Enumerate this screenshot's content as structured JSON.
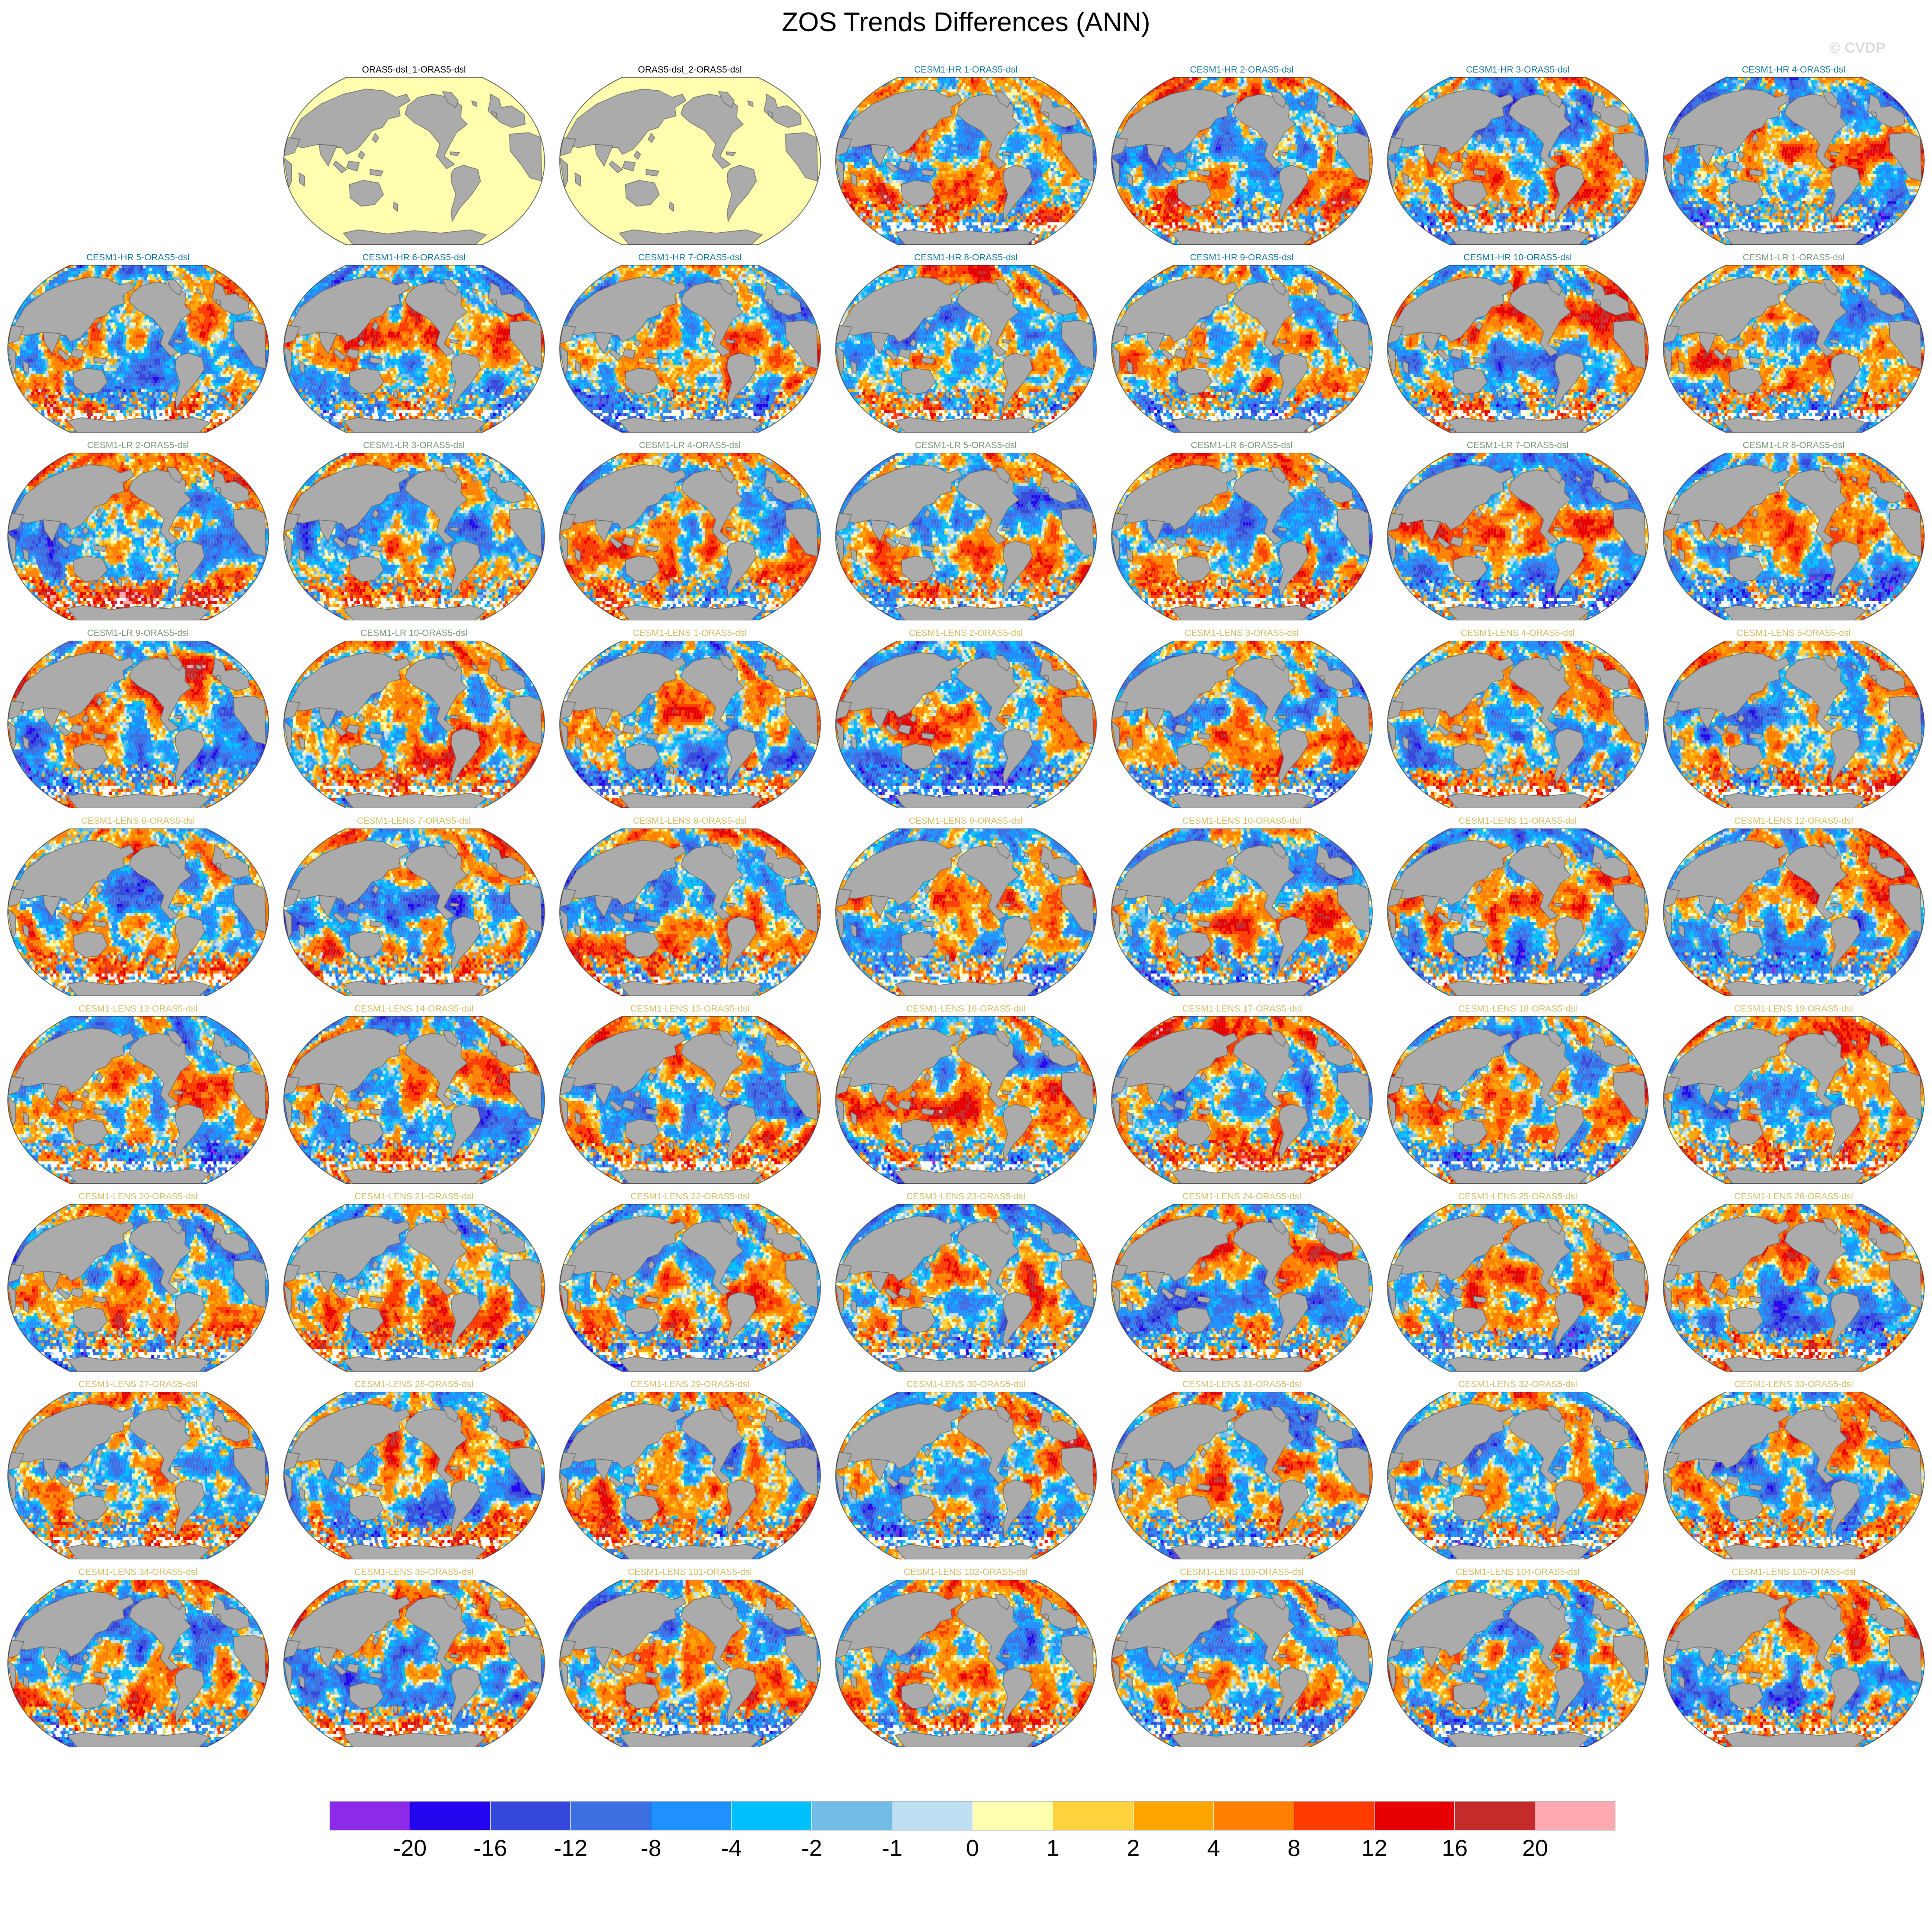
{
  "header": {
    "title": "ZOS Trends Differences (ANN)",
    "watermark": "© CVDP"
  },
  "panel_title_colors": {
    "obs": "#000000",
    "hr": "#17789E",
    "lr": "#7E9B7E",
    "lens": "#D3BF6B"
  },
  "map": {
    "land_color": "#ABABAB",
    "land_stroke": "#5A5A5A",
    "outline_color": "#3A3A3A",
    "uniform_ocean_color": "#FFFFAF",
    "missing_color": "#FFFFFF"
  },
  "grid": {
    "rows": 9,
    "cols": 7,
    "first_cell_blank": true
  },
  "panels": [
    {
      "label": "ORAS5-dsl_1-ORAS5-dsl",
      "group": "obs",
      "uniform": true,
      "seed": 1
    },
    {
      "label": "ORAS5-dsl_2-ORAS5-dsl",
      "group": "obs",
      "uniform": true,
      "seed": 2
    },
    {
      "label": "CESM1-HR 1-ORAS5-dsl",
      "group": "hr",
      "uniform": false,
      "seed": 3
    },
    {
      "label": "CESM1-HR 2-ORAS5-dsl",
      "group": "hr",
      "uniform": false,
      "seed": 4
    },
    {
      "label": "CESM1-HR 3-ORAS5-dsl",
      "group": "hr",
      "uniform": false,
      "seed": 5
    },
    {
      "label": "CESM1-HR 4-ORAS5-dsl",
      "group": "hr",
      "uniform": false,
      "seed": 6
    },
    {
      "label": "CESM1-HR 5-ORAS5-dsl",
      "group": "hr",
      "uniform": false,
      "seed": 7
    },
    {
      "label": "CESM1-HR 6-ORAS5-dsl",
      "group": "hr",
      "uniform": false,
      "seed": 8
    },
    {
      "label": "CESM1-HR 7-ORAS5-dsl",
      "group": "hr",
      "uniform": false,
      "seed": 9
    },
    {
      "label": "CESM1-HR 8-ORAS5-dsl",
      "group": "hr",
      "uniform": false,
      "seed": 10
    },
    {
      "label": "CESM1-HR 9-ORAS5-dsl",
      "group": "hr",
      "uniform": false,
      "seed": 11
    },
    {
      "label": "CESM1-HR 10-ORAS5-dsl",
      "group": "hr",
      "uniform": false,
      "seed": 12
    },
    {
      "label": "CESM1-LR 1-ORAS5-dsl",
      "group": "lr",
      "uniform": false,
      "seed": 13
    },
    {
      "label": "CESM1-LR 2-ORAS5-dsl",
      "group": "lr",
      "uniform": false,
      "seed": 14
    },
    {
      "label": "CESM1-LR 3-ORAS5-dsl",
      "group": "lr",
      "uniform": false,
      "seed": 15
    },
    {
      "label": "CESM1-LR 4-ORAS5-dsl",
      "group": "lr",
      "uniform": false,
      "seed": 16
    },
    {
      "label": "CESM1-LR 5-ORAS5-dsl",
      "group": "lr",
      "uniform": false,
      "seed": 17
    },
    {
      "label": "CESM1-LR 6-ORAS5-dsl",
      "group": "lr",
      "uniform": false,
      "seed": 18
    },
    {
      "label": "CESM1-LR 7-ORAS5-dsl",
      "group": "lr",
      "uniform": false,
      "seed": 19
    },
    {
      "label": "CESM1-LR 8-ORAS5-dsl",
      "group": "lr",
      "uniform": false,
      "seed": 20
    },
    {
      "label": "CESM1-LR 9-ORAS5-dsl",
      "group": "lr",
      "uniform": false,
      "seed": 21
    },
    {
      "label": "CESM1-LR 10-ORAS5-dsl",
      "group": "lr",
      "uniform": false,
      "seed": 22
    },
    {
      "label": "CESM1-LENS 1-ORAS5-dsl",
      "group": "lens",
      "uniform": false,
      "seed": 23
    },
    {
      "label": "CESM1-LENS 2-ORAS5-dsl",
      "group": "lens",
      "uniform": false,
      "seed": 24
    },
    {
      "label": "CESM1-LENS 3-ORAS5-dsl",
      "group": "lens",
      "uniform": false,
      "seed": 25
    },
    {
      "label": "CESM1-LENS 4-ORAS5-dsl",
      "group": "lens",
      "uniform": false,
      "seed": 26
    },
    {
      "label": "CESM1-LENS 5-ORAS5-dsl",
      "group": "lens",
      "uniform": false,
      "seed": 27
    },
    {
      "label": "CESM1-LENS 6-ORAS5-dsl",
      "group": "lens",
      "uniform": false,
      "seed": 28
    },
    {
      "label": "CESM1-LENS 7-ORAS5-dsl",
      "group": "lens",
      "uniform": false,
      "seed": 29
    },
    {
      "label": "CESM1-LENS 8-ORAS5-dsl",
      "group": "lens",
      "uniform": false,
      "seed": 30
    },
    {
      "label": "CESM1-LENS 9-ORAS5-dsl",
      "group": "lens",
      "uniform": false,
      "seed": 31
    },
    {
      "label": "CESM1-LENS 10-ORAS5-dsl",
      "group": "lens",
      "uniform": false,
      "seed": 32
    },
    {
      "label": "CESM1-LENS 11-ORAS5-dsl",
      "group": "lens",
      "uniform": false,
      "seed": 33
    },
    {
      "label": "CESM1-LENS 12-ORAS5-dsl",
      "group": "lens",
      "uniform": false,
      "seed": 34
    },
    {
      "label": "CESM1-LENS 13-ORAS5-dsl",
      "group": "lens",
      "uniform": false,
      "seed": 35
    },
    {
      "label": "CESM1-LENS 14-ORAS5-dsl",
      "group": "lens",
      "uniform": false,
      "seed": 36
    },
    {
      "label": "CESM1-LENS 15-ORAS5-dsl",
      "group": "lens",
      "uniform": false,
      "seed": 37
    },
    {
      "label": "CESM1-LENS 16-ORAS5-dsl",
      "group": "lens",
      "uniform": false,
      "seed": 38
    },
    {
      "label": "CESM1-LENS 17-ORAS5-dsl",
      "group": "lens",
      "uniform": false,
      "seed": 39
    },
    {
      "label": "CESM1-LENS 18-ORAS5-dsl",
      "group": "lens",
      "uniform": false,
      "seed": 40
    },
    {
      "label": "CESM1-LENS 19-ORAS5-dsl",
      "group": "lens",
      "uniform": false,
      "seed": 41
    },
    {
      "label": "CESM1-LENS 20-ORAS5-dsl",
      "group": "lens",
      "uniform": false,
      "seed": 42
    },
    {
      "label": "CESM1-LENS 21-ORAS5-dsl",
      "group": "lens",
      "uniform": false,
      "seed": 43
    },
    {
      "label": "CESM1-LENS 22-ORAS5-dsl",
      "group": "lens",
      "uniform": false,
      "seed": 44
    },
    {
      "label": "CESM1-LENS 23-ORAS5-dsl",
      "group": "lens",
      "uniform": false,
      "seed": 45
    },
    {
      "label": "CESM1-LENS 24-ORAS5-dsl",
      "group": "lens",
      "uniform": false,
      "seed": 46
    },
    {
      "label": "CESM1-LENS 25-ORAS5-dsl",
      "group": "lens",
      "uniform": false,
      "seed": 47
    },
    {
      "label": "CESM1-LENS 26-ORAS5-dsl",
      "group": "lens",
      "uniform": false,
      "seed": 48
    },
    {
      "label": "CESM1-LENS 27-ORAS5-dsl",
      "group": "lens",
      "uniform": false,
      "seed": 49
    },
    {
      "label": "CESM1-LENS 28-ORAS5-dsl",
      "group": "lens",
      "uniform": false,
      "seed": 50
    },
    {
      "label": "CESM1-LENS 29-ORAS5-dsl",
      "group": "lens",
      "uniform": false,
      "seed": 51
    },
    {
      "label": "CESM1-LENS 30-ORAS5-dsl",
      "group": "lens",
      "uniform": false,
      "seed": 52
    },
    {
      "label": "CESM1-LENS 31-ORAS5-dsl",
      "group": "lens",
      "uniform": false,
      "seed": 53
    },
    {
      "label": "CESM1-LENS 32-ORAS5-dsl",
      "group": "lens",
      "uniform": false,
      "seed": 54
    },
    {
      "label": "CESM1-LENS 33-ORAS5-dsl",
      "group": "lens",
      "uniform": false,
      "seed": 55
    },
    {
      "label": "CESM1-LENS 34-ORAS5-dsl",
      "group": "lens",
      "uniform": false,
      "seed": 56
    },
    {
      "label": "CESM1-LENS 35-ORAS5-dsl",
      "group": "lens",
      "uniform": false,
      "seed": 57
    },
    {
      "label": "CESM1-LENS 101-ORAS5-dsl",
      "group": "lens",
      "uniform": false,
      "seed": 58
    },
    {
      "label": "CESM1-LENS 102-ORAS5-dsl",
      "group": "lens",
      "uniform": false,
      "seed": 59
    },
    {
      "label": "CESM1-LENS 103-ORAS5-dsl",
      "group": "lens",
      "uniform": false,
      "seed": 60
    },
    {
      "label": "CESM1-LENS 104-ORAS5-dsl",
      "group": "lens",
      "uniform": false,
      "seed": 61
    },
    {
      "label": "CESM1-LENS 105-ORAS5-dsl",
      "group": "lens",
      "uniform": false,
      "seed": 62
    }
  ],
  "colorbar": {
    "labels": [
      "-20",
      "-16",
      "-12",
      "-8",
      "-4",
      "-2",
      "-1",
      "0",
      "1",
      "2",
      "4",
      "8",
      "12",
      "16",
      "20"
    ],
    "colors": [
      "#8B2BE8",
      "#2306EE",
      "#3448DC",
      "#3D6FE3",
      "#1E90FF",
      "#00BFFF",
      "#71BDE8",
      "#BFDFF2",
      "#FFFFAF",
      "#FFD33E",
      "#FFA500",
      "#FF7F00",
      "#FF3B00",
      "#E60000",
      "#C42B2B",
      "#FFA9B1"
    ]
  },
  "chart_data": {
    "type": "heatmap",
    "title": "ZOS Trends Differences (ANN)",
    "variable": "ZOS",
    "season": "ANN",
    "colorbar_levels": [
      -20,
      -16,
      -12,
      -8,
      -4,
      -2,
      -1,
      0,
      1,
      2,
      4,
      8,
      12,
      16,
      20
    ],
    "colorbar_colors": [
      "#8B2BE8",
      "#2306EE",
      "#3448DC",
      "#3D6FE3",
      "#1E90FF",
      "#00BFFF",
      "#71BDE8",
      "#BFDFF2",
      "#FFFFAF",
      "#FFD33E",
      "#FFA500",
      "#FF7F00",
      "#FF3B00",
      "#E60000",
      "#C42B2B",
      "#FFA9B1"
    ],
    "layout": {
      "rows": 9,
      "cols": 7,
      "first_cell_blank": true,
      "legend_position": "bottom"
    },
    "panels": [
      "ORAS5-dsl_1-ORAS5-dsl",
      "ORAS5-dsl_2-ORAS5-dsl",
      "CESM1-HR 1-ORAS5-dsl",
      "CESM1-HR 2-ORAS5-dsl",
      "CESM1-HR 3-ORAS5-dsl",
      "CESM1-HR 4-ORAS5-dsl",
      "CESM1-HR 5-ORAS5-dsl",
      "CESM1-HR 6-ORAS5-dsl",
      "CESM1-HR 7-ORAS5-dsl",
      "CESM1-HR 8-ORAS5-dsl",
      "CESM1-HR 9-ORAS5-dsl",
      "CESM1-HR 10-ORAS5-dsl",
      "CESM1-LR 1-ORAS5-dsl",
      "CESM1-LR 2-ORAS5-dsl",
      "CESM1-LR 3-ORAS5-dsl",
      "CESM1-LR 4-ORAS5-dsl",
      "CESM1-LR 5-ORAS5-dsl",
      "CESM1-LR 6-ORAS5-dsl",
      "CESM1-LR 7-ORAS5-dsl",
      "CESM1-LR 8-ORAS5-dsl",
      "CESM1-LR 9-ORAS5-dsl",
      "CESM1-LR 10-ORAS5-dsl",
      "CESM1-LENS 1-ORAS5-dsl",
      "CESM1-LENS 2-ORAS5-dsl",
      "CESM1-LENS 3-ORAS5-dsl",
      "CESM1-LENS 4-ORAS5-dsl",
      "CESM1-LENS 5-ORAS5-dsl",
      "CESM1-LENS 6-ORAS5-dsl",
      "CESM1-LENS 7-ORAS5-dsl",
      "CESM1-LENS 8-ORAS5-dsl",
      "CESM1-LENS 9-ORAS5-dsl",
      "CESM1-LENS 10-ORAS5-dsl",
      "CESM1-LENS 11-ORAS5-dsl",
      "CESM1-LENS 12-ORAS5-dsl",
      "CESM1-LENS 13-ORAS5-dsl",
      "CESM1-LENS 14-ORAS5-dsl",
      "CESM1-LENS 15-ORAS5-dsl",
      "CESM1-LENS 16-ORAS5-dsl",
      "CESM1-LENS 17-ORAS5-dsl",
      "CESM1-LENS 18-ORAS5-dsl",
      "CESM1-LENS 19-ORAS5-dsl",
      "CESM1-LENS 20-ORAS5-dsl",
      "CESM1-LENS 21-ORAS5-dsl",
      "CESM1-LENS 22-ORAS5-dsl",
      "CESM1-LENS 23-ORAS5-dsl",
      "CESM1-LENS 24-ORAS5-dsl",
      "CESM1-LENS 25-ORAS5-dsl",
      "CESM1-LENS 26-ORAS5-dsl",
      "CESM1-LENS 27-ORAS5-dsl",
      "CESM1-LENS 28-ORAS5-dsl",
      "CESM1-LENS 29-ORAS5-dsl",
      "CESM1-LENS 30-ORAS5-dsl",
      "CESM1-LENS 31-ORAS5-dsl",
      "CESM1-LENS 32-ORAS5-dsl",
      "CESM1-LENS 33-ORAS5-dsl",
      "CESM1-LENS 34-ORAS5-dsl",
      "CESM1-LENS 35-ORAS5-dsl",
      "CESM1-LENS 101-ORAS5-dsl",
      "CESM1-LENS 102-ORAS5-dsl",
      "CESM1-LENS 103-ORAS5-dsl",
      "CESM1-LENS 104-ORAS5-dsl",
      "CESM1-LENS 105-ORAS5-dsl"
    ],
    "uniform_zero_panels": [
      "ORAS5-dsl_1-ORAS5-dsl",
      "ORAS5-dsl_2-ORAS5-dsl"
    ]
  }
}
